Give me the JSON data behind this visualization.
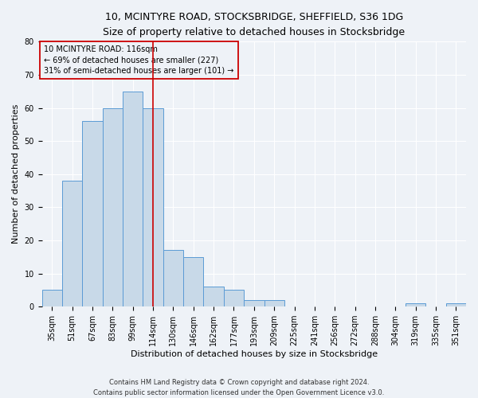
{
  "title1": "10, MCINTYRE ROAD, STOCKSBRIDGE, SHEFFIELD, S36 1DG",
  "title2": "Size of property relative to detached houses in Stocksbridge",
  "xlabel": "Distribution of detached houses by size in Stocksbridge",
  "ylabel": "Number of detached properties",
  "categories": [
    "35sqm",
    "51sqm",
    "67sqm",
    "83sqm",
    "99sqm",
    "114sqm",
    "130sqm",
    "146sqm",
    "162sqm",
    "177sqm",
    "193sqm",
    "209sqm",
    "225sqm",
    "241sqm",
    "256sqm",
    "272sqm",
    "288sqm",
    "304sqm",
    "319sqm",
    "335sqm",
    "351sqm"
  ],
  "values": [
    5,
    38,
    56,
    60,
    65,
    60,
    17,
    15,
    6,
    5,
    2,
    2,
    0,
    0,
    0,
    0,
    0,
    0,
    1,
    0,
    1
  ],
  "bar_color": "#c8d9e8",
  "bar_edge_color": "#5b9bd5",
  "vline_x": 5,
  "vline_color": "#cc0000",
  "ylim": [
    0,
    80
  ],
  "yticks": [
    0,
    10,
    20,
    30,
    40,
    50,
    60,
    70,
    80
  ],
  "annotation_line1": "10 MCINTYRE ROAD: 116sqm",
  "annotation_line2": "← 69% of detached houses are smaller (227)",
  "annotation_line3": "31% of semi-detached houses are larger (101) →",
  "footer": "Contains HM Land Registry data © Crown copyright and database right 2024.\nContains public sector information licensed under the Open Government Licence v3.0.",
  "background_color": "#eef2f7",
  "grid_color": "#ffffff",
  "title_fontsize": 9,
  "subtitle_fontsize": 8.5,
  "tick_fontsize": 7,
  "ylabel_fontsize": 8,
  "xlabel_fontsize": 8,
  "footer_fontsize": 6,
  "ann_fontsize": 7
}
